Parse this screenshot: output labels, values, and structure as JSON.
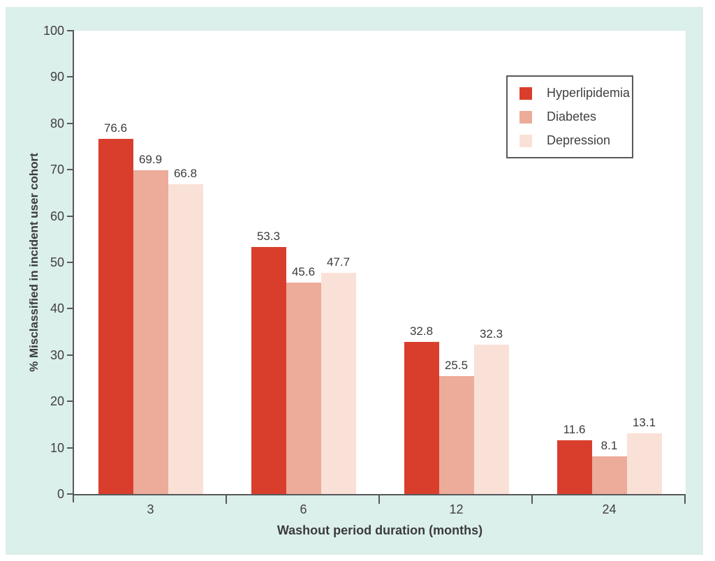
{
  "figure": {
    "page_background": "#ffffff",
    "panel_background": "#DBEFEB",
    "plot_background": "#ffffff",
    "axis_color": "#57585A",
    "text_color": "#414042"
  },
  "chart_data": {
    "type": "bar",
    "title": "",
    "xlabel": "Washout period duration (months)",
    "ylabel": "% Misclassified in incident user cohort",
    "categories": [
      "3",
      "6",
      "12",
      "24"
    ],
    "series": [
      {
        "name": "Hyperlipidemia",
        "color": "#D93E2D",
        "values": [
          76.6,
          53.3,
          32.8,
          11.6
        ]
      },
      {
        "name": "Diabetes",
        "color": "#EDAB99",
        "values": [
          69.9,
          45.6,
          25.5,
          8.1
        ]
      },
      {
        "name": "Depression",
        "color": "#FAE1D7",
        "values": [
          66.8,
          47.7,
          32.3,
          13.1
        ]
      }
    ],
    "ylim": [
      0,
      100
    ],
    "ytick_step": 10,
    "grid": false,
    "bar_value_labels": true,
    "legend_position": "top-right"
  }
}
